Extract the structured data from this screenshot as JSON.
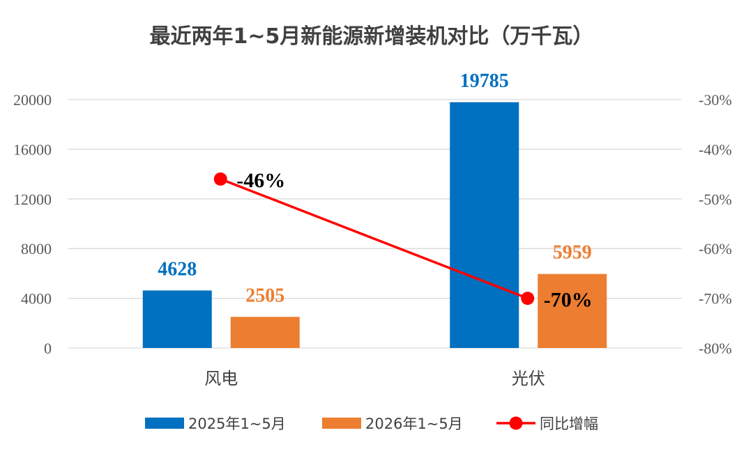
{
  "chart_data": {
    "type": "bar",
    "title": "最近两年1~5月新能源新增装机对比（万千瓦）",
    "categories": [
      "风电",
      "光伏"
    ],
    "series": [
      {
        "name": "2025年1~5月",
        "values": [
          4628,
          19785
        ],
        "color": "#0070c0",
        "labels": [
          "4628",
          "19785"
        ]
      },
      {
        "name": "2026年1~5月",
        "values": [
          2505,
          5959
        ],
        "color": "#ed7d31",
        "labels": [
          "2505",
          "5959"
        ]
      }
    ],
    "line_series": {
      "name": "同比增幅",
      "values": [
        -46,
        -70
      ],
      "labels": [
        "-46%",
        "-70%"
      ],
      "color": "#ff0000",
      "axis": "right"
    },
    "y_left": {
      "ylim": [
        0,
        20000
      ],
      "ticks": [
        "0",
        "4000",
        "8000",
        "12000",
        "16000",
        "20000"
      ]
    },
    "y_right": {
      "ylim": [
        -80,
        -30
      ],
      "ticks": [
        "-80%",
        "-70%",
        "-60%",
        "-50%",
        "-40%",
        "-30%"
      ]
    },
    "grid": true,
    "legend_position": "bottom"
  }
}
